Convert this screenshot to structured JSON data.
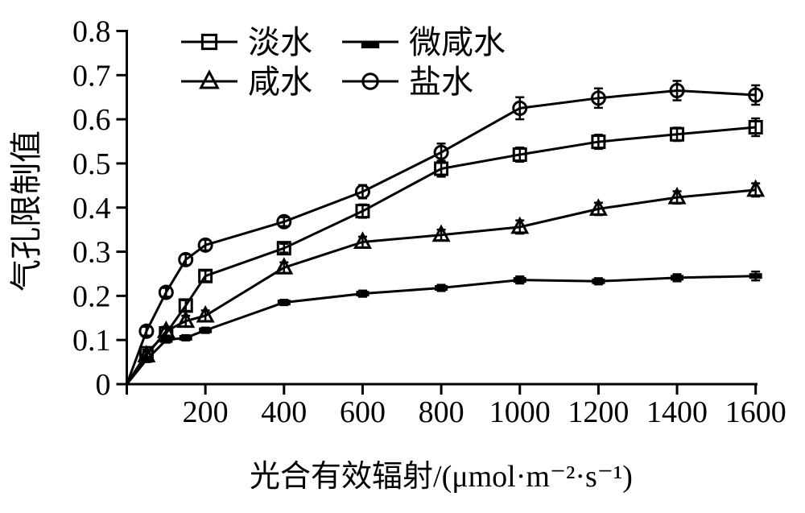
{
  "figure": {
    "background": "#ffffff",
    "ink_color": "#000000"
  },
  "chart_data": {
    "type": "line",
    "title": "",
    "xlabel": "光合有效辐射/(μmol·m⁻²·s⁻¹)",
    "ylabel": "气孔限制值",
    "xlim": [
      0,
      1600
    ],
    "ylim": [
      0,
      0.8
    ],
    "grid": false,
    "legend_position": "top-left-inside",
    "x_ticks": [
      200,
      400,
      600,
      800,
      1000,
      1200,
      1400,
      1600
    ],
    "y_ticks": [
      {
        "label": "0",
        "value": 0
      },
      {
        "label": "0.1",
        "value": 0.1
      },
      {
        "label": "0.2",
        "value": 0.2
      },
      {
        "label": "0.3",
        "value": 0.3
      },
      {
        "label": "0.4",
        "value": 0.4
      },
      {
        "label": "0.5",
        "value": 0.5
      },
      {
        "label": "0.6",
        "value": 0.6
      },
      {
        "label": "0.7",
        "value": 0.7
      },
      {
        "label": "0.8",
        "value": 0.8
      }
    ],
    "x": [
      0,
      50,
      100,
      150,
      200,
      400,
      600,
      800,
      1000,
      1200,
      1400,
      1600
    ],
    "series": [
      {
        "name": "淡水",
        "key": "freshwater",
        "marker": "square-open",
        "values": [
          0,
          0.07,
          0.115,
          0.178,
          0.245,
          0.308,
          0.392,
          0.488,
          0.52,
          0.549,
          0.566,
          0.582
        ],
        "errors": [
          0,
          0.008,
          0.01,
          0.012,
          0.012,
          0.01,
          0.015,
          0.018,
          0.016,
          0.016,
          0.015,
          0.02
        ]
      },
      {
        "name": "微咸水",
        "key": "brackish",
        "marker": "dash-filled",
        "values": [
          0,
          0.055,
          0.1,
          0.105,
          0.122,
          0.185,
          0.205,
          0.218,
          0.236,
          0.233,
          0.241,
          0.245
        ],
        "errors": [
          0,
          0.005,
          0.006,
          0.006,
          0.006,
          0.006,
          0.007,
          0.007,
          0.008,
          0.007,
          0.008,
          0.01
        ]
      },
      {
        "name": "咸水",
        "key": "saline",
        "marker": "triangle-open",
        "values": [
          0,
          0.065,
          0.12,
          0.143,
          0.155,
          0.264,
          0.322,
          0.338,
          0.356,
          0.397,
          0.423,
          0.44
        ],
        "errors": [
          0,
          0.008,
          0.01,
          0.012,
          0.012,
          0.012,
          0.012,
          0.012,
          0.015,
          0.014,
          0.014,
          0.015
        ]
      },
      {
        "name": "盐水",
        "key": "salt",
        "marker": "circle-open",
        "values": [
          0,
          0.12,
          0.208,
          0.282,
          0.315,
          0.368,
          0.436,
          0.525,
          0.625,
          0.648,
          0.665,
          0.655
        ],
        "errors": [
          0,
          0.01,
          0.01,
          0.012,
          0.012,
          0.01,
          0.015,
          0.02,
          0.025,
          0.022,
          0.022,
          0.022
        ]
      }
    ]
  }
}
